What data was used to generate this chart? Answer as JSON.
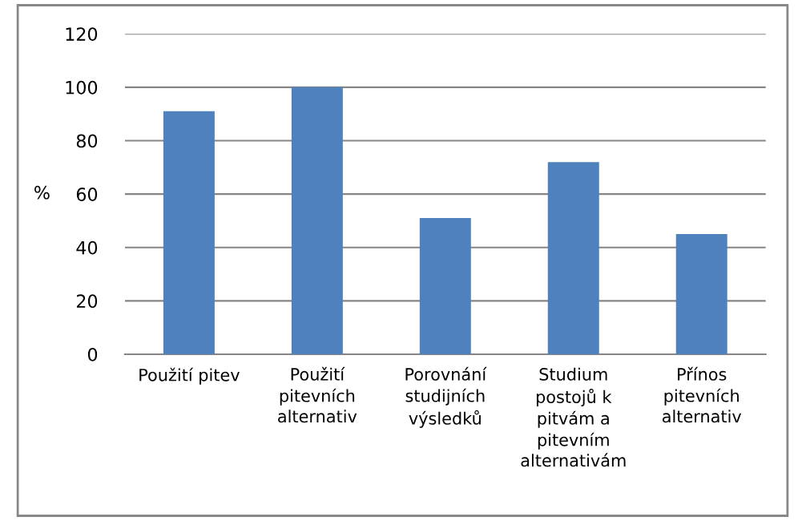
{
  "chart_data": {
    "type": "bar",
    "ylabel": "%",
    "categories": [
      "Použití pitev",
      "Použití\npitevních\nalternativ",
      "Porovnání\nstudijních\nvýsledků",
      "Studium\npostojů k\npitvám a\npitevním\nalternativám",
      "Přínos\npitevních\nalternativ"
    ],
    "values": [
      91,
      100,
      51,
      72,
      45
    ],
    "color": "#4f81bd",
    "ylim": [
      0,
      120
    ],
    "yticks": [
      0,
      20,
      40,
      60,
      80,
      100,
      120
    ],
    "grid": "y",
    "legend": false
  }
}
